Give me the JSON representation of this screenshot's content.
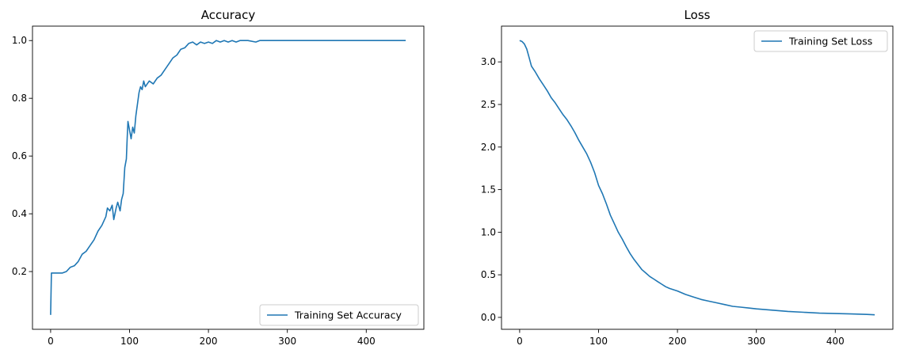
{
  "chart_data": [
    {
      "type": "line",
      "title": "Accuracy",
      "xlabel": "",
      "ylabel": "",
      "xlim": [
        -23,
        473
      ],
      "ylim": [
        0.0,
        1.05
      ],
      "xticks": [
        0,
        100,
        200,
        300,
        400
      ],
      "xtick_labels": [
        "0",
        "100",
        "200",
        "300",
        "400"
      ],
      "yticks": [
        0.2,
        0.4,
        0.6,
        0.8,
        1.0
      ],
      "ytick_labels": [
        "0.2",
        "0.4",
        "0.6",
        "0.8",
        "1.0"
      ],
      "grid": false,
      "legend_position": "lower-right",
      "series": [
        {
          "name": "Training Set Accuracy",
          "color": "#1f77b4",
          "points": [
            [
              0,
              0.05
            ],
            [
              1,
              0.195
            ],
            [
              5,
              0.195
            ],
            [
              10,
              0.195
            ],
            [
              15,
              0.195
            ],
            [
              20,
              0.2
            ],
            [
              25,
              0.215
            ],
            [
              30,
              0.22
            ],
            [
              35,
              0.235
            ],
            [
              40,
              0.26
            ],
            [
              45,
              0.27
            ],
            [
              50,
              0.29
            ],
            [
              55,
              0.31
            ],
            [
              60,
              0.34
            ],
            [
              65,
              0.36
            ],
            [
              70,
              0.39
            ],
            [
              72,
              0.42
            ],
            [
              75,
              0.41
            ],
            [
              78,
              0.43
            ],
            [
              80,
              0.38
            ],
            [
              83,
              0.42
            ],
            [
              85,
              0.44
            ],
            [
              88,
              0.41
            ],
            [
              90,
              0.45
            ],
            [
              92,
              0.47
            ],
            [
              94,
              0.56
            ],
            [
              96,
              0.59
            ],
            [
              97,
              0.66
            ],
            [
              98,
              0.72
            ],
            [
              100,
              0.69
            ],
            [
              102,
              0.66
            ],
            [
              104,
              0.7
            ],
            [
              106,
              0.68
            ],
            [
              108,
              0.74
            ],
            [
              110,
              0.78
            ],
            [
              112,
              0.82
            ],
            [
              114,
              0.84
            ],
            [
              116,
              0.83
            ],
            [
              118,
              0.86
            ],
            [
              120,
              0.84
            ],
            [
              125,
              0.86
            ],
            [
              130,
              0.85
            ],
            [
              135,
              0.87
            ],
            [
              140,
              0.88
            ],
            [
              145,
              0.9
            ],
            [
              150,
              0.92
            ],
            [
              155,
              0.94
            ],
            [
              160,
              0.95
            ],
            [
              165,
              0.97
            ],
            [
              170,
              0.975
            ],
            [
              175,
              0.99
            ],
            [
              180,
              0.995
            ],
            [
              185,
              0.985
            ],
            [
              190,
              0.995
            ],
            [
              195,
              0.99
            ],
            [
              200,
              0.995
            ],
            [
              205,
              0.99
            ],
            [
              210,
              1.0
            ],
            [
              215,
              0.995
            ],
            [
              220,
              1.0
            ],
            [
              225,
              0.995
            ],
            [
              230,
              1.0
            ],
            [
              235,
              0.995
            ],
            [
              240,
              1.0
            ],
            [
              250,
              1.0
            ],
            [
              260,
              0.995
            ],
            [
              265,
              1.0
            ],
            [
              300,
              1.0
            ],
            [
              350,
              1.0
            ],
            [
              400,
              1.0
            ],
            [
              450,
              1.0
            ]
          ]
        }
      ]
    },
    {
      "type": "line",
      "title": "Loss",
      "xlabel": "",
      "ylabel": "",
      "xlim": [
        -23,
        473
      ],
      "ylim": [
        -0.14,
        3.42
      ],
      "xticks": [
        0,
        100,
        200,
        300,
        400
      ],
      "xtick_labels": [
        "0",
        "100",
        "200",
        "300",
        "400"
      ],
      "yticks": [
        0.0,
        0.5,
        1.0,
        1.5,
        2.0,
        2.5,
        3.0
      ],
      "ytick_labels": [
        "0.0",
        "0.5",
        "1.0",
        "1.5",
        "2.0",
        "2.5",
        "3.0"
      ],
      "grid": false,
      "legend_position": "upper-right",
      "series": [
        {
          "name": "Training Set Loss",
          "color": "#1f77b4",
          "points": [
            [
              0,
              3.25
            ],
            [
              3,
              3.24
            ],
            [
              6,
              3.21
            ],
            [
              9,
              3.15
            ],
            [
              12,
              3.05
            ],
            [
              15,
              2.95
            ],
            [
              20,
              2.88
            ],
            [
              25,
              2.8
            ],
            [
              30,
              2.73
            ],
            [
              35,
              2.66
            ],
            [
              40,
              2.58
            ],
            [
              45,
              2.52
            ],
            [
              50,
              2.45
            ],
            [
              55,
              2.38
            ],
            [
              60,
              2.32
            ],
            [
              65,
              2.25
            ],
            [
              70,
              2.17
            ],
            [
              75,
              2.08
            ],
            [
              80,
              2.0
            ],
            [
              85,
              1.92
            ],
            [
              90,
              1.82
            ],
            [
              95,
              1.7
            ],
            [
              100,
              1.55
            ],
            [
              105,
              1.45
            ],
            [
              110,
              1.33
            ],
            [
              115,
              1.2
            ],
            [
              120,
              1.1
            ],
            [
              125,
              1.0
            ],
            [
              130,
              0.92
            ],
            [
              135,
              0.83
            ],
            [
              140,
              0.75
            ],
            [
              145,
              0.68
            ],
            [
              150,
              0.62
            ],
            [
              155,
              0.56
            ],
            [
              160,
              0.52
            ],
            [
              165,
              0.48
            ],
            [
              170,
              0.45
            ],
            [
              175,
              0.42
            ],
            [
              180,
              0.39
            ],
            [
              185,
              0.36
            ],
            [
              190,
              0.34
            ],
            [
              200,
              0.31
            ],
            [
              210,
              0.27
            ],
            [
              220,
              0.24
            ],
            [
              230,
              0.21
            ],
            [
              240,
              0.19
            ],
            [
              250,
              0.17
            ],
            [
              260,
              0.15
            ],
            [
              270,
              0.13
            ],
            [
              280,
              0.12
            ],
            [
              290,
              0.11
            ],
            [
              300,
              0.1
            ],
            [
              320,
              0.085
            ],
            [
              340,
              0.07
            ],
            [
              360,
              0.06
            ],
            [
              380,
              0.05
            ],
            [
              400,
              0.045
            ],
            [
              420,
              0.04
            ],
            [
              440,
              0.035
            ],
            [
              450,
              0.03
            ]
          ]
        }
      ]
    }
  ]
}
